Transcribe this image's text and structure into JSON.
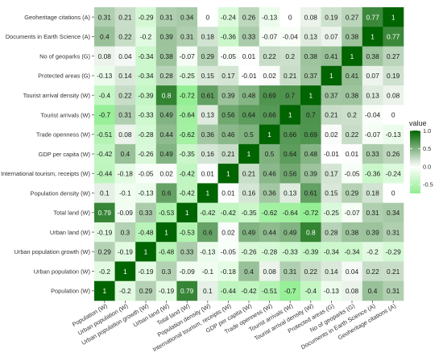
{
  "chart_data": {
    "type": "heatmap",
    "title": "",
    "xlabel": "",
    "ylabel": "",
    "labels": [
      "Population (W)",
      "Urban population (W)",
      "Urban population growth (W)",
      "Urban land (W)",
      "Total land (W)",
      "Population density (W)",
      "International tourism, receipts (W)",
      "GDP per capita (W)",
      "Trade openness (W)",
      "Tourist arrivals (W)",
      "Tourist arrival density (W)",
      "Protected areas (G)",
      "No of geoparks (G)",
      "Documents in Earth Science (A)",
      "Geoheritage citations (A)"
    ],
    "rows_top_to_bottom": [
      "Geoheritage citations (A)",
      "Documents in Earth Science (A)",
      "No of geoparks (G)",
      "Protected areas (G)",
      "Tourist arrival density (W)",
      "Tourist arrivals (W)",
      "Trade openness (W)",
      "GDP per capita (W)",
      "International tourism, receipts (W)",
      "Population density (W)",
      "Total land (W)",
      "Urban land (W)",
      "Urban population growth (W)",
      "Urban population (W)",
      "Population (W)"
    ],
    "values": [
      [
        "0.31",
        "0.21",
        "-0.29",
        "0.31",
        "0.34",
        "0",
        "-0.24",
        "0.26",
        "-0.13",
        "0",
        "0.08",
        "0.19",
        "0.27",
        "0.77",
        "1"
      ],
      [
        "0.4",
        "0.22",
        "-0.2",
        "0.39",
        "0.31",
        "0.18",
        "-0.36",
        "0.33",
        "-0.07",
        "-0.04",
        "0.13",
        "0.07",
        "0.38",
        "1",
        "0.77"
      ],
      [
        "0.08",
        "0.04",
        "-0.34",
        "0.38",
        "-0.07",
        "0.29",
        "-0.05",
        "0.01",
        "0.22",
        "0.2",
        "0.38",
        "0.41",
        "1",
        "0.38",
        "0.27"
      ],
      [
        "-0.13",
        "0.14",
        "-0.34",
        "0.28",
        "-0.25",
        "0.15",
        "0.17",
        "-0.01",
        "0.02",
        "0.21",
        "0.37",
        "1",
        "0.41",
        "0.07",
        "0.19"
      ],
      [
        "-0.4",
        "0.22",
        "-0.39",
        "0.8",
        "-0.72",
        "0.61",
        "0.39",
        "0.48",
        "0.69",
        "0.7",
        "1",
        "0.37",
        "0.38",
        "0.13",
        "0.08"
      ],
      [
        "-0.7",
        "0.31",
        "-0.33",
        "0.49",
        "-0.64",
        "0.13",
        "0.56",
        "0.64",
        "0.66",
        "1",
        "0.7",
        "0.21",
        "0.2",
        "-0.04",
        "0"
      ],
      [
        "-0.51",
        "0.08",
        "-0.28",
        "0.44",
        "-0.62",
        "0.36",
        "0.46",
        "0.5",
        "1",
        "0.66",
        "0.69",
        "0.02",
        "0.22",
        "-0.07",
        "-0.13"
      ],
      [
        "-0.42",
        "0.4",
        "-0.26",
        "0.49",
        "-0.35",
        "0.16",
        "0.21",
        "1",
        "0.5",
        "0.64",
        "0.48",
        "-0.01",
        "0.01",
        "0.33",
        "0.26"
      ],
      [
        "-0.44",
        "-0.18",
        "-0.05",
        "0.02",
        "-0.42",
        "0.01",
        "1",
        "0.21",
        "0.46",
        "0.56",
        "0.39",
        "0.17",
        "-0.05",
        "-0.36",
        "-0.24"
      ],
      [
        "0.1",
        "-0.1",
        "-0.13",
        "0.6",
        "-0.42",
        "1",
        "0.01",
        "0.16",
        "0.36",
        "0.13",
        "0.61",
        "0.15",
        "0.29",
        "0.18",
        "0"
      ],
      [
        "0.79",
        "-0.09",
        "0.33",
        "-0.53",
        "1",
        "-0.42",
        "-0.42",
        "-0.35",
        "-0.62",
        "-0.64",
        "-0.72",
        "-0.25",
        "-0.07",
        "0.31",
        "0.34"
      ],
      [
        "-0.19",
        "0.3",
        "-0.48",
        "1",
        "-0.53",
        "0.6",
        "0.02",
        "0.49",
        "0.44",
        "0.49",
        "0.8",
        "0.28",
        "0.38",
        "0.39",
        "0.31"
      ],
      [
        "0.29",
        "-0.19",
        "1",
        "-0.48",
        "0.33",
        "-0.13",
        "-0.05",
        "-0.26",
        "-0.28",
        "-0.33",
        "-0.39",
        "-0.34",
        "-0.34",
        "-0.2",
        "-0.29"
      ],
      [
        "-0.2",
        "1",
        "-0.19",
        "0.3",
        "-0.09",
        "-0.1",
        "-0.18",
        "0.4",
        "0.08",
        "0.31",
        "0.22",
        "0.14",
        "0.04",
        "0.22",
        "0.21"
      ],
      [
        "1",
        "-0.2",
        "0.29",
        "-0.19",
        "0.79",
        "0.1",
        "-0.44",
        "-0.42",
        "-0.51",
        "-0.7",
        "-0.4",
        "-0.13",
        "0.08",
        "0.4",
        "0.31"
      ]
    ],
    "legend": {
      "title": "value",
      "ticks": [
        "1.0",
        "0.5",
        "0.0",
        "-0.5"
      ],
      "range": [
        -0.75,
        1.0
      ],
      "placement": "right"
    },
    "colors": {
      "high": "#006400",
      "mid": "#ffffff",
      "low": "#90ee90"
    }
  }
}
